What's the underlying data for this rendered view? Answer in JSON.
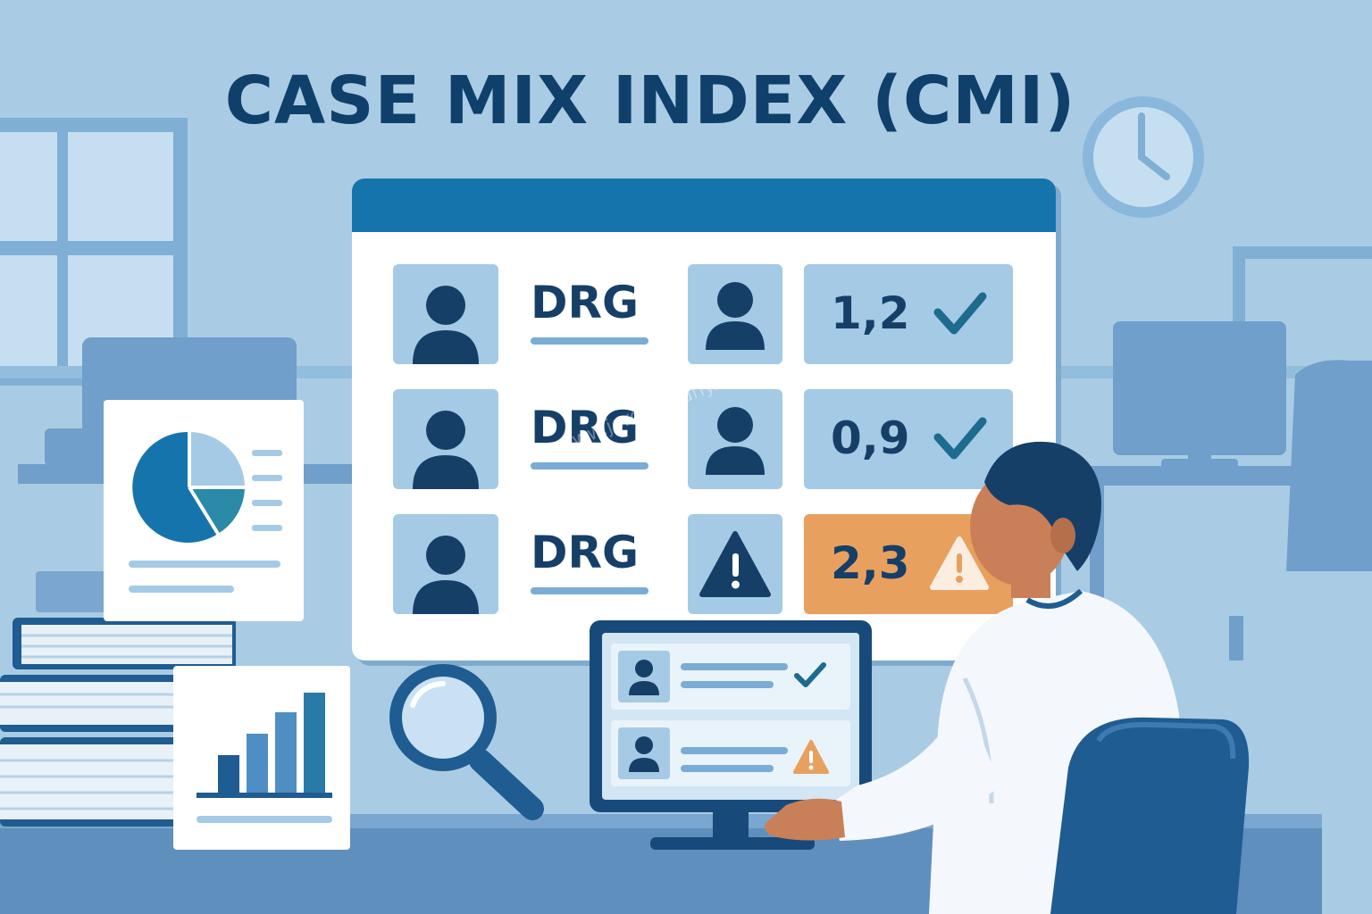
{
  "title": "CASE MIX INDEX (CMI)",
  "colors": {
    "background": "#a9cce4",
    "title": "#0f3f6b",
    "panel_header": "#1674ad",
    "tile": "#a5cae5",
    "alert_tile": "#e8a05f",
    "check": "#1d6b8f"
  },
  "dashboard": {
    "rows": [
      {
        "label": "DRG",
        "icon": "person-icon",
        "value": "1,2",
        "status": "check-icon"
      },
      {
        "label": "DRG",
        "icon": "person-icon",
        "value": "0,9",
        "status": "check-icon"
      },
      {
        "label": "DRG",
        "icon": "warning-icon",
        "value": "2,3",
        "status": "warning-icon"
      }
    ]
  },
  "monitor": {
    "rows": [
      {
        "icon": "person-icon",
        "status": "check-icon"
      },
      {
        "icon": "person-icon",
        "status": "warning-icon"
      }
    ]
  },
  "watermark": "www.jordanleahy.com"
}
